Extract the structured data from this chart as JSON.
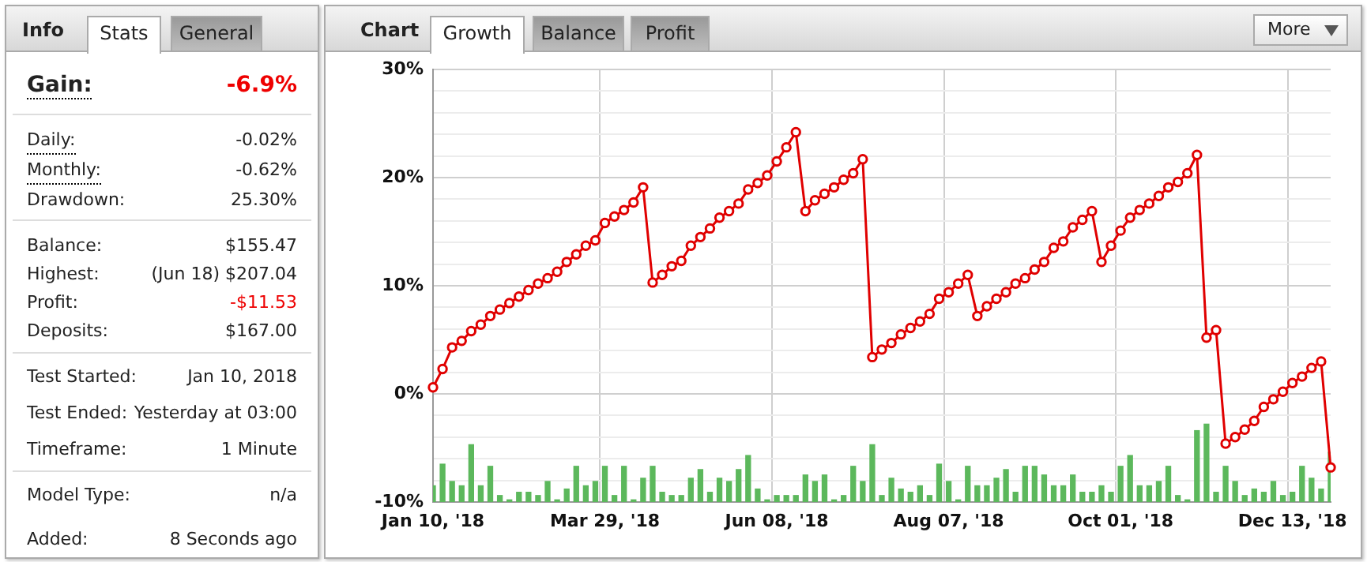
{
  "chart_data": [
    {
      "type": "other",
      "title": "Info",
      "annotations": [
        "Stats",
        "General",
        "Gain:",
        "-6.9%",
        "Daily:",
        "-0.02%",
        "Monthly:",
        "-0.62%",
        "Drawdown:",
        "25.30%",
        "Balance:",
        "$155.47",
        "Highest:",
        "(Jun 18) $207.04",
        "Profit:",
        "-$11.53",
        "Deposits:",
        "$167.00",
        "Test Started:",
        "Jan 10, 2018",
        "Test Ended:",
        "Yesterday at 03:00",
        "Timeframe:",
        "1 Minute",
        "Model Type:",
        "n/a",
        "Added:",
        "8 Seconds ago"
      ]
    },
    {
      "type": "line",
      "title": "Chart",
      "annotations": [
        "Growth",
        "Balance",
        "Profit",
        "More"
      ],
      "categories": [
        "Jan 10, '18",
        null,
        null,
        null,
        null,
        null,
        null,
        null,
        null,
        null,
        null,
        null,
        null,
        null,
        null,
        null,
        null,
        null,
        "Mar 29, '18",
        null,
        null,
        null,
        null,
        null,
        null,
        null,
        null,
        null,
        null,
        null,
        null,
        null,
        null,
        null,
        null,
        null,
        "Jun 08, '18",
        null,
        null,
        null,
        null,
        null,
        null,
        null,
        null,
        null,
        null,
        null,
        null,
        null,
        null,
        null,
        null,
        null,
        "Aug 07, '18",
        null,
        null,
        null,
        null,
        null,
        null,
        null,
        null,
        null,
        null,
        null,
        null,
        null,
        null,
        null,
        null,
        null,
        "Oct 01, '18",
        null,
        null,
        null,
        null,
        null,
        null,
        null,
        null,
        null,
        null,
        null,
        null,
        null,
        null,
        null,
        null,
        null,
        "Dec 13, '18",
        null,
        null,
        null,
        null
      ],
      "series": [
        {
          "type": "line",
          "color": "#e00000",
          "values": [
            0.6,
            2.3,
            4.3,
            4.9,
            5.8,
            6.4,
            7.2,
            7.8,
            8.4,
            9.0,
            9.6,
            10.2,
            10.7,
            11.3,
            12.2,
            12.9,
            13.7,
            14.2,
            15.8,
            16.4,
            17.0,
            17.7,
            19.1,
            10.3,
            11.0,
            11.8,
            12.3,
            13.7,
            14.5,
            15.3,
            16.3,
            16.9,
            17.6,
            18.9,
            19.5,
            20.2,
            21.5,
            22.8,
            24.2,
            16.9,
            17.9,
            18.5,
            19.1,
            19.8,
            20.4,
            21.7,
            3.4,
            4.1,
            4.7,
            5.5,
            6.1,
            6.7,
            7.4,
            8.8,
            9.4,
            10.2,
            11.0,
            7.2,
            8.1,
            8.8,
            9.4,
            10.2,
            10.7,
            11.5,
            12.2,
            13.5,
            14.1,
            15.4,
            16.1,
            16.9,
            12.2,
            13.7,
            15.1,
            16.3,
            17.0,
            17.6,
            18.3,
            19.1,
            19.6,
            20.4,
            22.1,
            5.2,
            5.9,
            -4.6,
            -4.0,
            -3.3,
            -2.5,
            -1.2,
            -0.5,
            0.2,
            1.0,
            1.6,
            2.4,
            3.0,
            -6.8
          ]
        },
        {
          "type": "bar",
          "color": "#5cb85c",
          "values": [
            1.5,
            3.5,
            1.9,
            1.5,
            5.3,
            1.5,
            3.3,
            0.6,
            0.2,
            0.9,
            0.9,
            0.6,
            1.9,
            0.2,
            1.2,
            3.3,
            1.5,
            1.9,
            3.3,
            0.6,
            3.3,
            0.2,
            2.2,
            3.3,
            0.9,
            0.6,
            0.6,
            2.2,
            3.0,
            0.9,
            2.2,
            1.9,
            3.0,
            4.3,
            1.2,
            0.2,
            0.6,
            0.6,
            0.6,
            2.5,
            1.9,
            2.5,
            0.2,
            0.6,
            3.3,
            1.9,
            5.3,
            0.6,
            2.2,
            1.2,
            0.9,
            1.5,
            0.6,
            3.5,
            1.9,
            0.2,
            3.3,
            1.5,
            1.5,
            2.2,
            3.0,
            0.9,
            3.3,
            3.3,
            2.5,
            1.5,
            1.5,
            2.5,
            0.9,
            0.9,
            1.5,
            0.9,
            3.3,
            4.3,
            1.5,
            1.5,
            1.9,
            3.3,
            0.6,
            0.2,
            6.6,
            7.2,
            0.9,
            3.3,
            1.9,
            0.6,
            1.2,
            0.9,
            1.9,
            0.6,
            0.9,
            3.3,
            2.2,
            1.2,
            4.6
          ],
          "base": [
            -10,
            -10,
            -10,
            -10,
            -10,
            -10,
            -10,
            -10,
            -10,
            -10,
            -10,
            -10,
            -10,
            -10,
            -10,
            -10,
            -10,
            -10,
            -10,
            -10,
            -10,
            -10,
            -10,
            -10,
            -10,
            -10,
            -10,
            -10,
            -10,
            -10,
            -10,
            -10,
            -10,
            -10,
            -10,
            -10,
            -10,
            -10,
            -10,
            -10,
            -10,
            -10,
            -10,
            -10,
            -10,
            -10,
            -10,
            -10,
            -10,
            -10,
            -10,
            -10,
            -10,
            -10,
            -10,
            -10,
            -10,
            -10,
            -10,
            -10,
            -10,
            -10,
            -10,
            -10,
            -10,
            -10,
            -10,
            -10,
            -10,
            -10,
            -10,
            -10,
            -10,
            -10,
            -10,
            -10,
            -10,
            -10,
            -10,
            -10,
            -10,
            -10,
            -10,
            -10,
            -10,
            -10,
            -10,
            -10,
            -10,
            -10,
            -10,
            -10,
            -10,
            -10,
            -10
          ]
        }
      ],
      "ylim": [
        -10,
        30
      ],
      "yticks": [
        {
          "value": -10,
          "label": "-10%"
        },
        {
          "value": -8,
          "label": null
        },
        {
          "value": -6,
          "label": null
        },
        {
          "value": -4,
          "label": null
        },
        {
          "value": -2,
          "label": null
        },
        {
          "value": 0,
          "label": "0%"
        },
        {
          "value": 2,
          "label": null
        },
        {
          "value": 4,
          "label": null
        },
        {
          "value": 6,
          "label": null
        },
        {
          "value": 8,
          "label": null
        },
        {
          "value": 10,
          "label": "10%"
        },
        {
          "value": 12,
          "label": null
        },
        {
          "value": 14,
          "label": null
        },
        {
          "value": 16,
          "label": null
        },
        {
          "value": 18,
          "label": null
        },
        {
          "value": 20,
          "label": "20%"
        },
        {
          "value": 22,
          "label": null
        },
        {
          "value": 24,
          "label": null
        },
        {
          "value": 26,
          "label": null
        },
        {
          "value": 28,
          "label": null
        },
        {
          "value": 30,
          "label": "30%"
        }
      ],
      "grid": true,
      "legend": false,
      "marker": "circle",
      "line_style": "solid"
    }
  ]
}
